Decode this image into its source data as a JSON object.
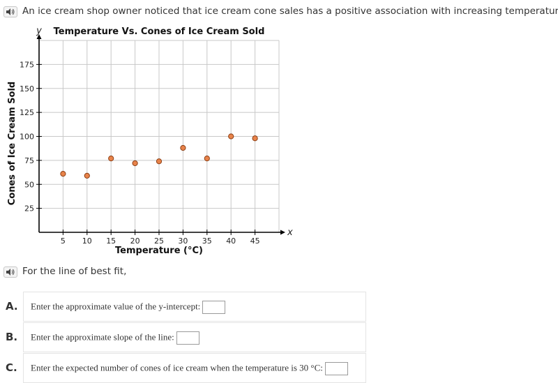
{
  "intro": {
    "text": "An ice cream shop owner noticed that ice cream cone sales has a positive association with increasing temperature."
  },
  "sub_prompt": {
    "text": "For the line of best fit,"
  },
  "icons": {
    "audio": "speaker-icon"
  },
  "colors": {
    "point_fill": "#e8834a",
    "point_stroke": "#8a3d13",
    "grid": "#c8c8c8"
  },
  "questions": [
    {
      "letter": "A.",
      "text": "Enter the approximate value of the y-intercept:",
      "value": ""
    },
    {
      "letter": "B.",
      "text": "Enter the approximate slope of the line:",
      "value": ""
    },
    {
      "letter": "C.",
      "text": "Enter the expected number of cones of ice cream when the temperature is 30 °C:",
      "value": ""
    }
  ],
  "chart_data": {
    "type": "scatter",
    "title": "Temperature Vs. Cones of Ice Cream Sold",
    "xlabel": "Temperature (°C)",
    "ylabel": "Cones of Ice Cream Sold",
    "x_axis_letter": "x",
    "y_axis_letter": "y",
    "xlim": [
      0,
      50
    ],
    "ylim": [
      0,
      200
    ],
    "x_ticks": [
      5,
      10,
      15,
      20,
      25,
      30,
      35,
      40,
      45
    ],
    "y_ticks": [
      25,
      50,
      75,
      100,
      125,
      150,
      175
    ],
    "grid": true,
    "points": [
      {
        "x": 5,
        "y": 61
      },
      {
        "x": 10,
        "y": 59
      },
      {
        "x": 15,
        "y": 77
      },
      {
        "x": 20,
        "y": 72
      },
      {
        "x": 25,
        "y": 74
      },
      {
        "x": 30,
        "y": 88
      },
      {
        "x": 35,
        "y": 77
      },
      {
        "x": 40,
        "y": 100
      },
      {
        "x": 45,
        "y": 98
      }
    ]
  }
}
